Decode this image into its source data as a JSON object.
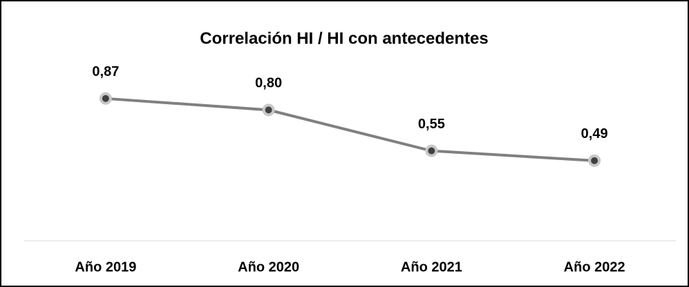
{
  "chart_data": {
    "type": "line",
    "title": "Correlación HI / HI con antecedentes",
    "categories": [
      "Año 2019",
      "Año 2020",
      "Año 2021",
      "Año 2022"
    ],
    "series": [
      {
        "name": "Correlación HI / HI con antecedentes",
        "color": "#808080",
        "values": [
          0.87,
          0.8,
          0.55,
          0.49
        ],
        "value_labels": [
          "0,87",
          "0,80",
          "0,55",
          "0,49"
        ]
      }
    ],
    "ylim": [
      0,
      1
    ]
  }
}
